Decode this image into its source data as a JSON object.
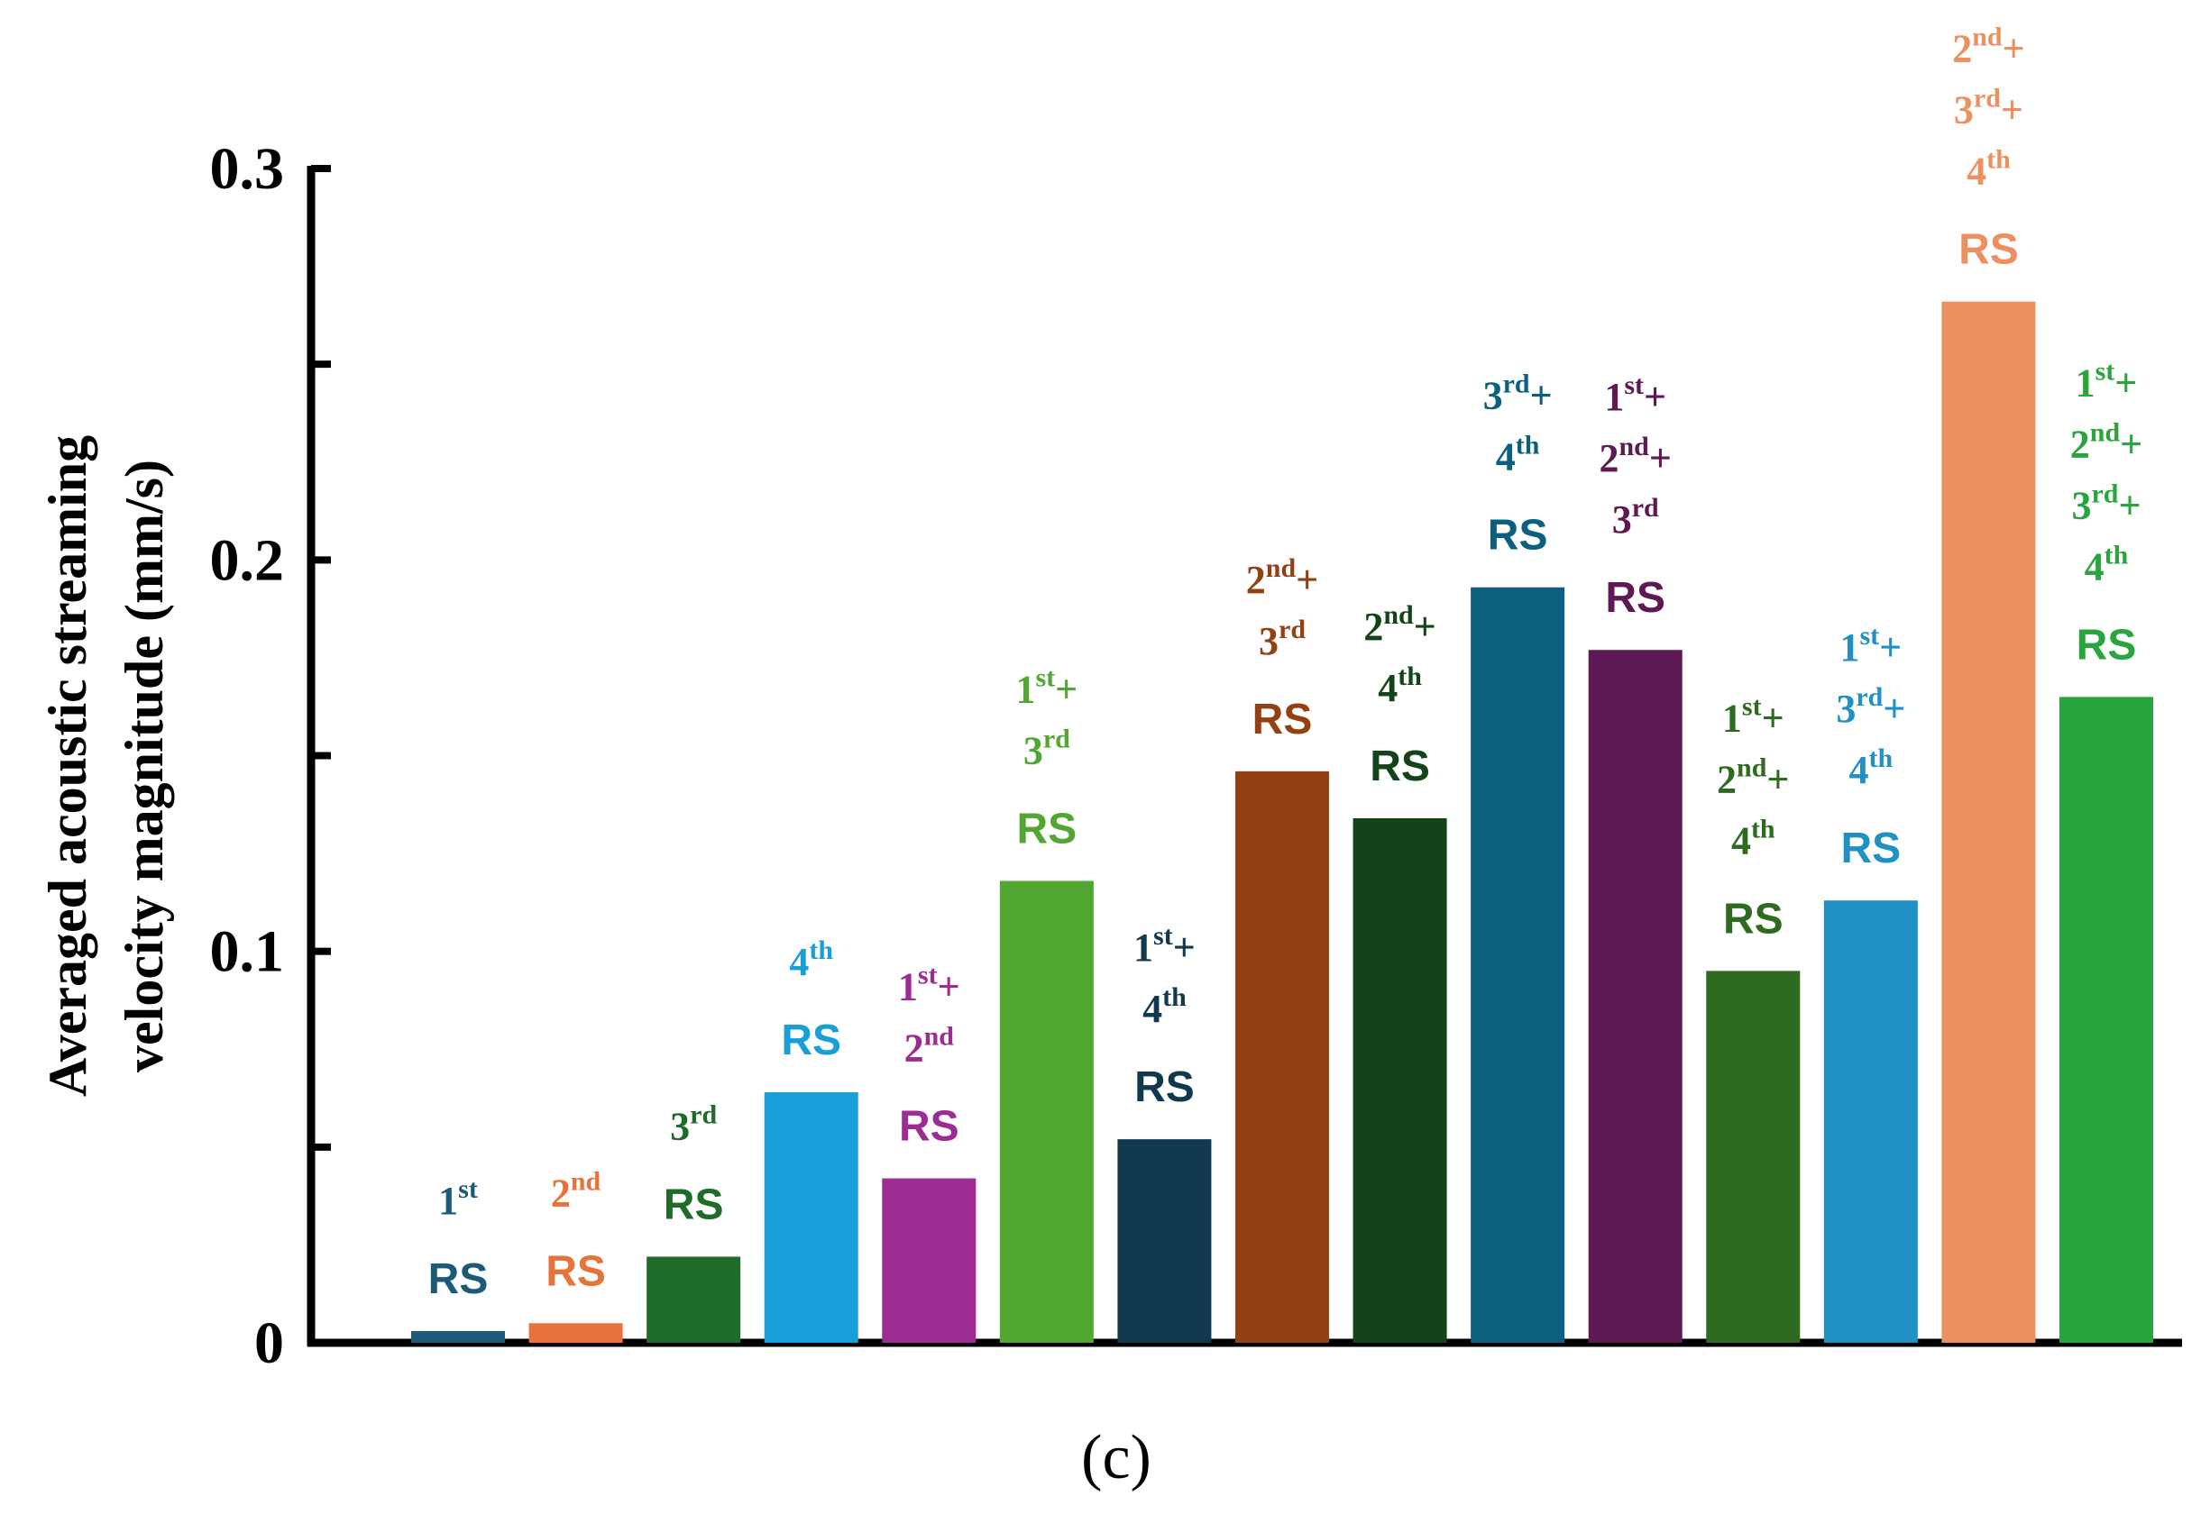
{
  "chart_data": {
    "type": "bar",
    "ylabel": [
      "Averaged acoustic streaming",
      "velocity magnitude (mm/s)"
    ],
    "ylim": [
      0,
      0.3
    ],
    "yticks": [
      "0",
      "0.1",
      "0.2",
      "0.3"
    ],
    "caption": "(c)",
    "bars": [
      {
        "lines": [
          [
            "1",
            "st",
            ""
          ]
        ],
        "rs": "RS",
        "value": 0.003,
        "color": "#1b5a78"
      },
      {
        "lines": [
          [
            "2",
            "nd",
            ""
          ]
        ],
        "rs": "RS",
        "value": 0.005,
        "color": "#e8733a"
      },
      {
        "lines": [
          [
            "3",
            "rd",
            ""
          ]
        ],
        "rs": "RS",
        "value": 0.022,
        "color": "#1e6b2a"
      },
      {
        "lines": [
          [
            "4",
            "th",
            ""
          ]
        ],
        "rs": "RS",
        "value": 0.064,
        "color": "#189fd8"
      },
      {
        "lines": [
          [
            "1",
            "st",
            "+"
          ],
          [
            "2",
            "nd",
            ""
          ]
        ],
        "rs": "RS",
        "value": 0.042,
        "color": "#9c2b92"
      },
      {
        "lines": [
          [
            "1",
            "st",
            "+"
          ],
          [
            "3",
            "rd",
            ""
          ]
        ],
        "rs": "RS",
        "value": 0.118,
        "color": "#52a632"
      },
      {
        "lines": [
          [
            "1",
            "st",
            "+"
          ],
          [
            "4",
            "th",
            ""
          ]
        ],
        "rs": "RS",
        "value": 0.052,
        "color": "#10394f"
      },
      {
        "lines": [
          [
            "2",
            "nd",
            "+"
          ],
          [
            "3",
            "rd",
            ""
          ]
        ],
        "rs": "RS",
        "value": 0.146,
        "color": "#934012"
      },
      {
        "lines": [
          [
            "2",
            "nd",
            "+"
          ],
          [
            "4",
            "th",
            ""
          ]
        ],
        "rs": "RS",
        "value": 0.134,
        "color": "#124418"
      },
      {
        "lines": [
          [
            "3",
            "rd",
            "+"
          ],
          [
            "4",
            "th",
            ""
          ]
        ],
        "rs": "RS",
        "value": 0.193,
        "color": "#0b5f7f"
      },
      {
        "lines": [
          [
            "1",
            "st",
            "+"
          ],
          [
            "2",
            "nd",
            "+"
          ],
          [
            "3",
            "rd",
            ""
          ]
        ],
        "rs": "RS",
        "value": 0.177,
        "color": "#5e1955"
      },
      {
        "lines": [
          [
            "1",
            "st",
            "+"
          ],
          [
            "2",
            "nd",
            "+"
          ],
          [
            "4",
            "th",
            ""
          ]
        ],
        "rs": "RS",
        "value": 0.095,
        "color": "#2e6a20"
      },
      {
        "lines": [
          [
            "1",
            "st",
            "+"
          ],
          [
            "3",
            "rd",
            "+"
          ],
          [
            "4",
            "th",
            ""
          ]
        ],
        "rs": "RS",
        "value": 0.113,
        "color": "#2190c4"
      },
      {
        "lines": [
          [
            "2",
            "nd",
            "+"
          ],
          [
            "3",
            "rd",
            "+"
          ],
          [
            "4",
            "th",
            ""
          ]
        ],
        "rs": "RS",
        "value": 0.266,
        "color": "#ec9060"
      },
      {
        "lines": [
          [
            "1",
            "st",
            "+"
          ],
          [
            "2",
            "nd",
            "+"
          ],
          [
            "3",
            "rd",
            "+"
          ],
          [
            "4",
            "th",
            ""
          ]
        ],
        "rs": "RS",
        "value": 0.165,
        "color": "#2aa43c"
      }
    ]
  }
}
